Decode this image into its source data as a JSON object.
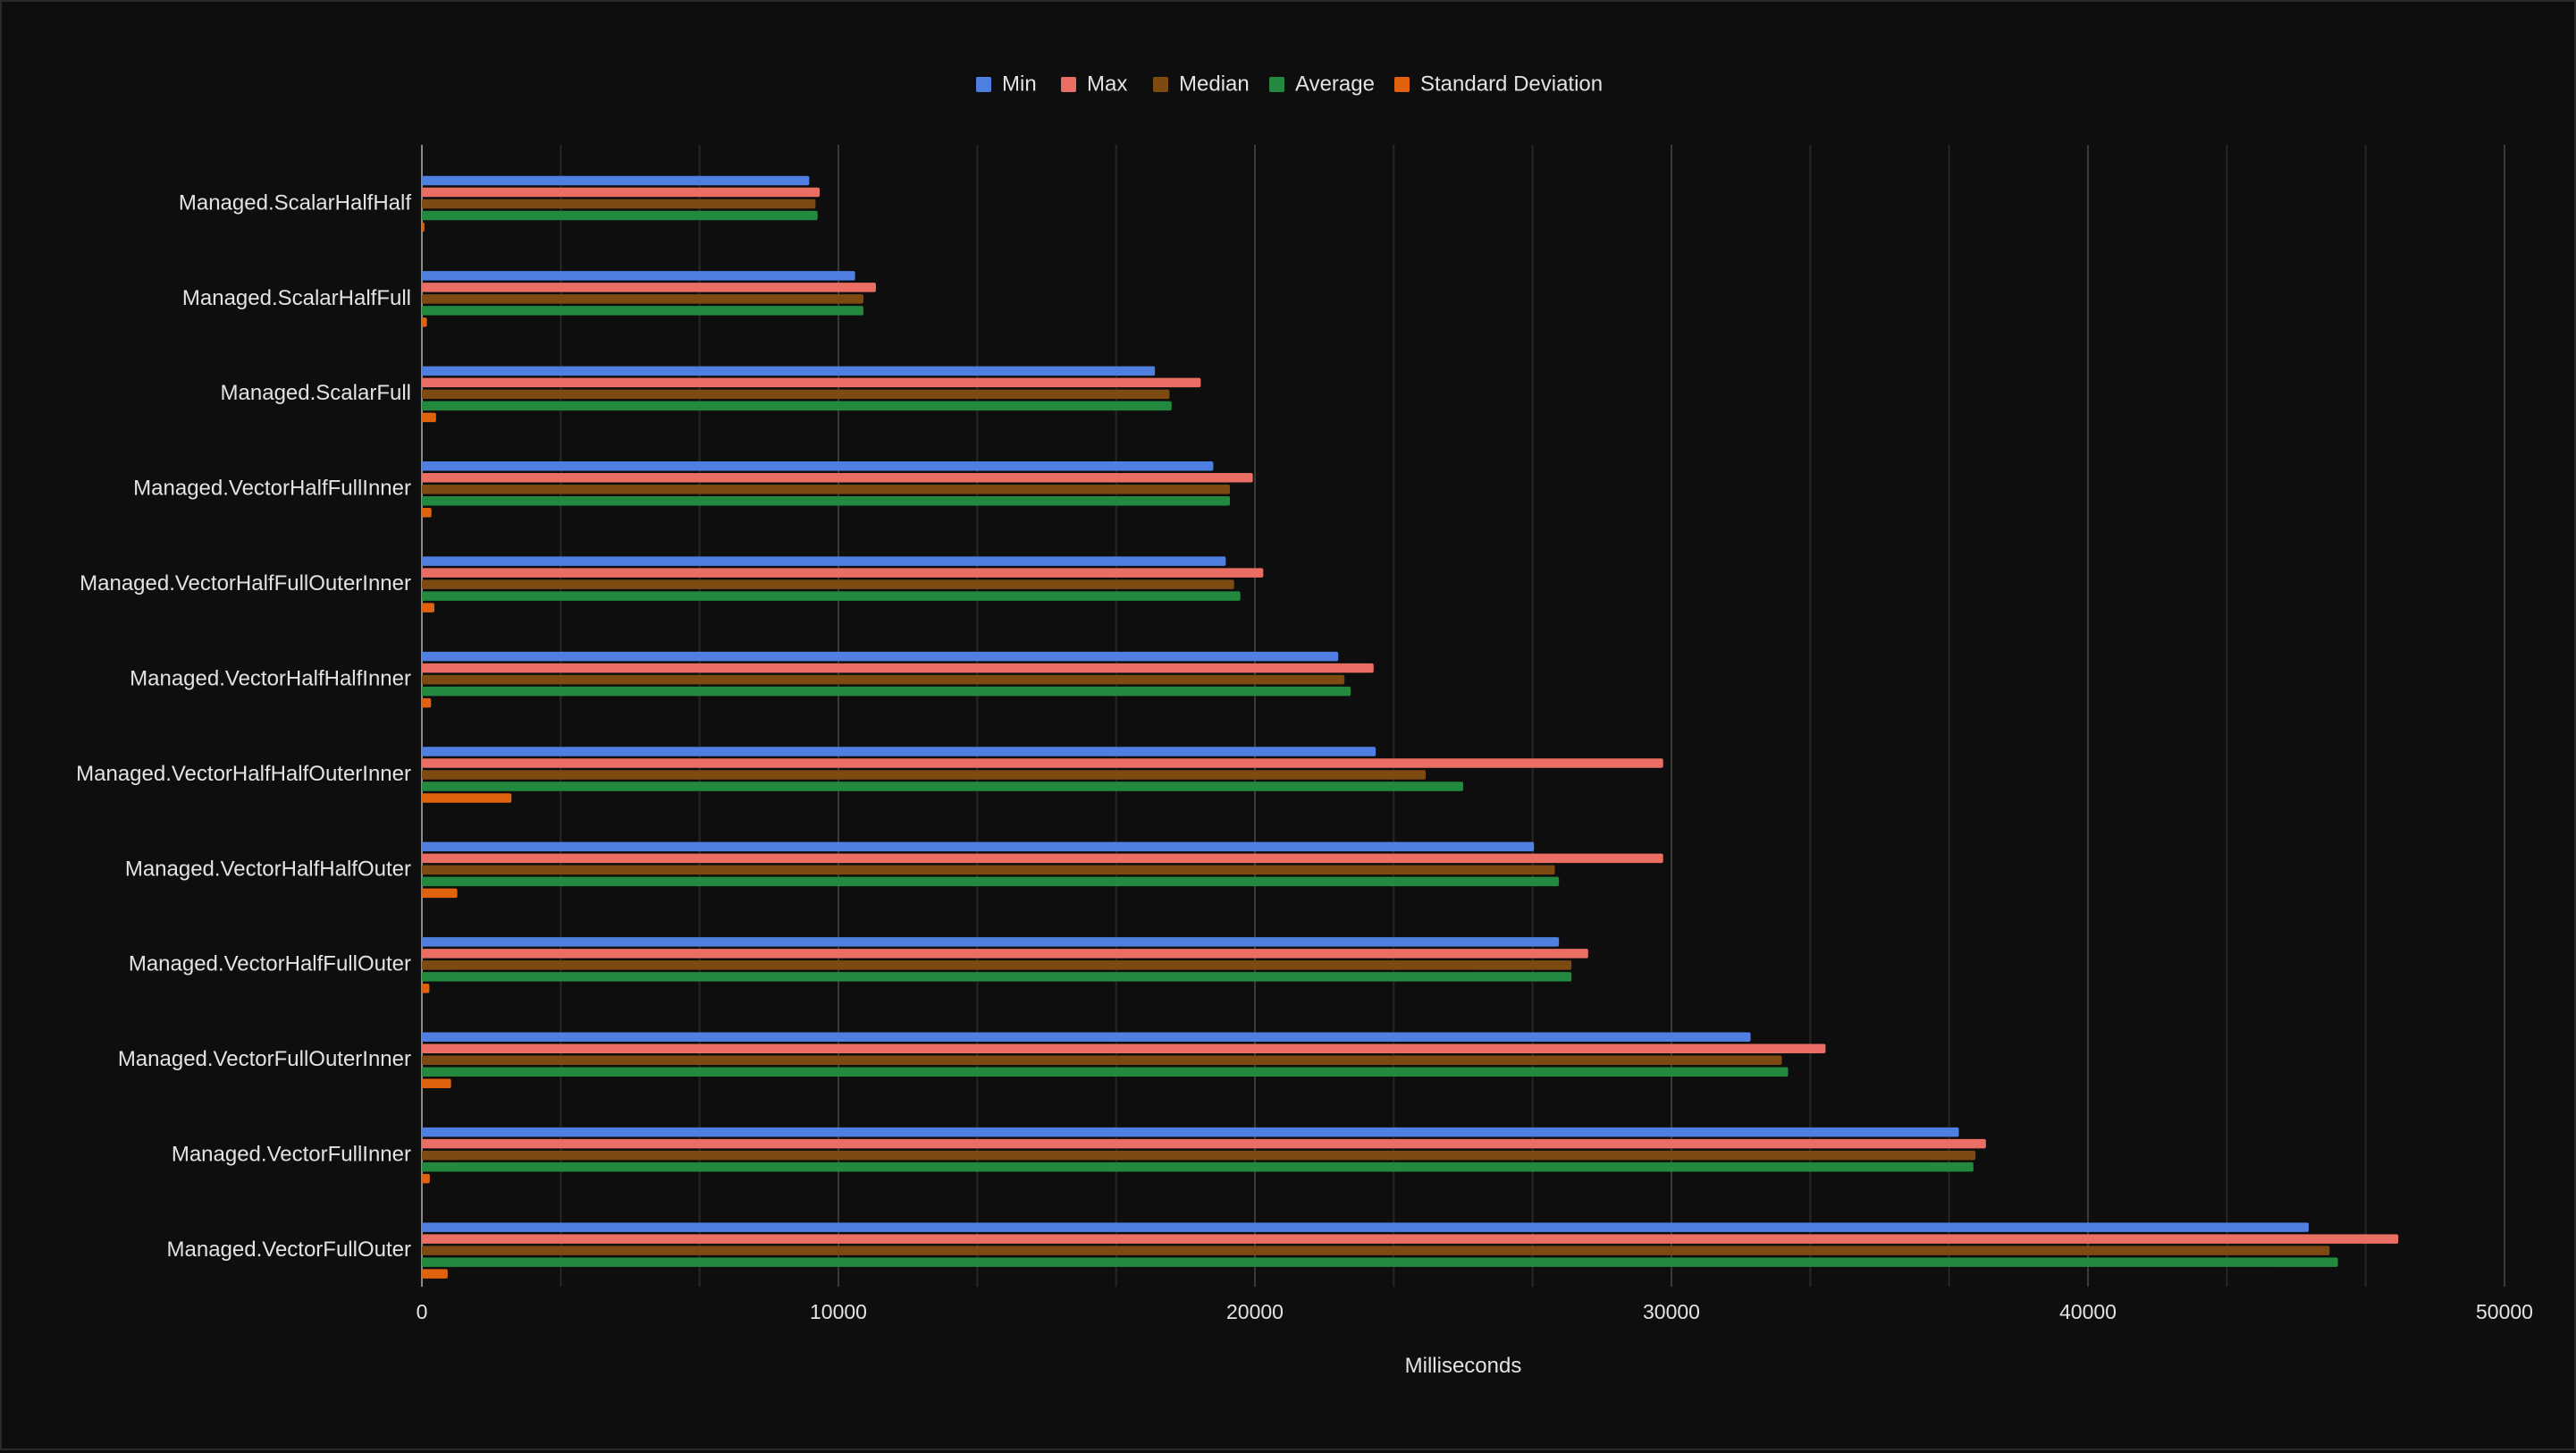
{
  "chart_data": {
    "type": "bar",
    "orientation": "horizontal",
    "title": "",
    "xlabel": "Milliseconds",
    "ylabel": "",
    "xlim": [
      0,
      50000
    ],
    "xticks": [
      0,
      10000,
      20000,
      30000,
      40000,
      50000
    ],
    "grid": true,
    "legend_position": "top",
    "categories": [
      "Managed.ScalarHalfHalf",
      "Managed.ScalarHalfFull",
      "Managed.ScalarFull",
      "Managed.VectorHalfFullInner",
      "Managed.VectorHalfFullOuterInner",
      "Managed.VectorHalfHalfInner",
      "Managed.VectorHalfHalfOuterInner",
      "Managed.VectorHalfHalfOuter",
      "Managed.VectorHalfFullOuter",
      "Managed.VectorFullOuterInner",
      "Managed.VectorFullInner",
      "Managed.VectorFullOuter"
    ],
    "series": [
      {
        "name": "Min",
        "color": "#4f7fe0",
        "values": [
          9300,
          10400,
          17600,
          19000,
          19300,
          22000,
          22900,
          26700,
          27300,
          31900,
          36900,
          45300
        ]
      },
      {
        "name": "Max",
        "color": "#ea6e64",
        "values": [
          9550,
          10900,
          18700,
          19950,
          20200,
          22850,
          29800,
          29800,
          28000,
          33700,
          37550,
          47450
        ]
      },
      {
        "name": "Median",
        "color": "#7d4a12",
        "values": [
          9450,
          10600,
          17950,
          19400,
          19500,
          22150,
          24100,
          27200,
          27600,
          32650,
          37300,
          45800
        ]
      },
      {
        "name": "Average",
        "color": "#23893f",
        "values": [
          9500,
          10600,
          18000,
          19400,
          19650,
          22300,
          25000,
          27300,
          27600,
          32800,
          37250,
          46000
        ]
      },
      {
        "name": "Standard Deviation",
        "color": "#e0620f",
        "values": [
          60,
          120,
          340,
          230,
          300,
          220,
          2150,
          850,
          180,
          700,
          190,
          620
        ]
      }
    ]
  }
}
